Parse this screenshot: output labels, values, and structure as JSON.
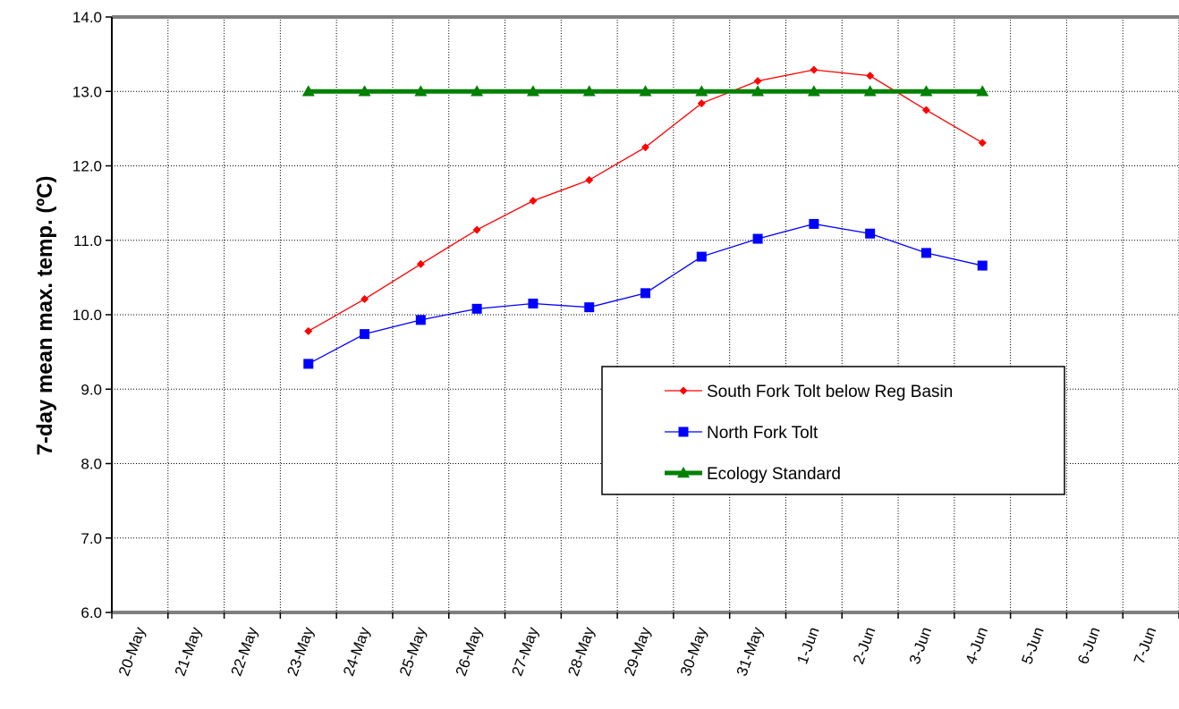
{
  "chart_data": {
    "type": "line",
    "title": "",
    "xlabel": "",
    "ylabel": "7-day mean max. temp. (ºC)",
    "categories": [
      "20-May",
      "21-May",
      "22-May",
      "23-May",
      "24-May",
      "25-May",
      "26-May",
      "27-May",
      "28-May",
      "29-May",
      "30-May",
      "31-May",
      "1-Jun",
      "2-Jun",
      "3-Jun",
      "4-Jun",
      "5-Jun",
      "6-Jun",
      "7-Jun"
    ],
    "ylim": [
      6.0,
      14.0
    ],
    "yticks": [
      "6.0",
      "7.0",
      "8.0",
      "9.0",
      "10.0",
      "11.0",
      "12.0",
      "13.0",
      "14.0"
    ],
    "grid": true,
    "legend_position": "lower-right",
    "series": [
      {
        "name": "South Fork Tolt below Reg Basin",
        "color": "#ff0000",
        "marker": "diamond",
        "values": [
          null,
          null,
          null,
          9.78,
          10.21,
          10.68,
          11.14,
          11.53,
          11.81,
          12.25,
          12.84,
          13.14,
          13.29,
          13.21,
          12.75,
          12.31,
          null,
          null,
          null
        ]
      },
      {
        "name": "North Fork Tolt",
        "color": "#0000ff",
        "marker": "square",
        "values": [
          null,
          null,
          null,
          9.34,
          9.74,
          9.93,
          10.08,
          10.15,
          10.1,
          10.29,
          10.78,
          11.02,
          11.22,
          11.09,
          10.83,
          10.66,
          null,
          null,
          null
        ]
      },
      {
        "name": "Ecology Standard",
        "color": "#008000",
        "marker": "triangle",
        "values": [
          null,
          null,
          null,
          13.0,
          13.0,
          13.0,
          13.0,
          13.0,
          13.0,
          13.0,
          13.0,
          13.0,
          13.0,
          13.0,
          13.0,
          13.0,
          null,
          null,
          null
        ]
      }
    ]
  }
}
